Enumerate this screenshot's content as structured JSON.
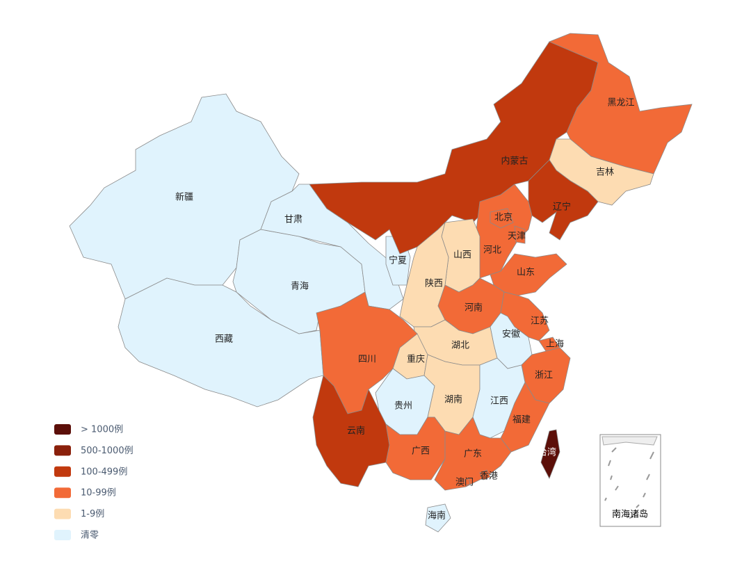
{
  "legend": [
    {
      "label": "> 1000例",
      "color": "#5c0f09"
    },
    {
      "label": "500-1000例",
      "color": "#8a200b"
    },
    {
      "label": "100-499例",
      "color": "#c1390e"
    },
    {
      "label": "10-99例",
      "color": "#f26a37"
    },
    {
      "label": "1-9例",
      "color": "#fddcb2"
    },
    {
      "label": "清零",
      "color": "#e0f3fd"
    }
  ],
  "provinces": [
    {
      "name": "新疆",
      "legend": 5
    },
    {
      "name": "西藏",
      "legend": 5
    },
    {
      "name": "青海",
      "legend": 5
    },
    {
      "name": "甘肃",
      "legend": 5
    },
    {
      "name": "宁夏",
      "legend": 5
    },
    {
      "name": "内蒙古",
      "legend": 2
    },
    {
      "name": "黑龙江",
      "legend": 3
    },
    {
      "name": "吉林",
      "legend": 4
    },
    {
      "name": "辽宁",
      "legend": 2
    },
    {
      "name": "河北",
      "legend": 3
    },
    {
      "name": "北京",
      "legend": 3
    },
    {
      "name": "天津",
      "legend": 3
    },
    {
      "name": "山西",
      "legend": 4
    },
    {
      "name": "陕西",
      "legend": 4
    },
    {
      "name": "山东",
      "legend": 3
    },
    {
      "name": "河南",
      "legend": 3
    },
    {
      "name": "江苏",
      "legend": 3
    },
    {
      "name": "上海",
      "legend": 3
    },
    {
      "name": "安徽",
      "legend": 5
    },
    {
      "name": "浙江",
      "legend": 3
    },
    {
      "name": "湖北",
      "legend": 4
    },
    {
      "name": "重庆",
      "legend": 4
    },
    {
      "name": "四川",
      "legend": 3
    },
    {
      "name": "贵州",
      "legend": 5
    },
    {
      "name": "湖南",
      "legend": 4
    },
    {
      "name": "江西",
      "legend": 5
    },
    {
      "name": "福建",
      "legend": 3
    },
    {
      "name": "云南",
      "legend": 2
    },
    {
      "name": "广西",
      "legend": 3
    },
    {
      "name": "广东",
      "legend": 3
    },
    {
      "name": "香港",
      "legend": 3
    },
    {
      "name": "澳门",
      "legend": 3
    },
    {
      "name": "台湾",
      "legend": 0
    },
    {
      "name": "海南",
      "legend": 5
    }
  ],
  "inset_label": "南海诸岛"
}
